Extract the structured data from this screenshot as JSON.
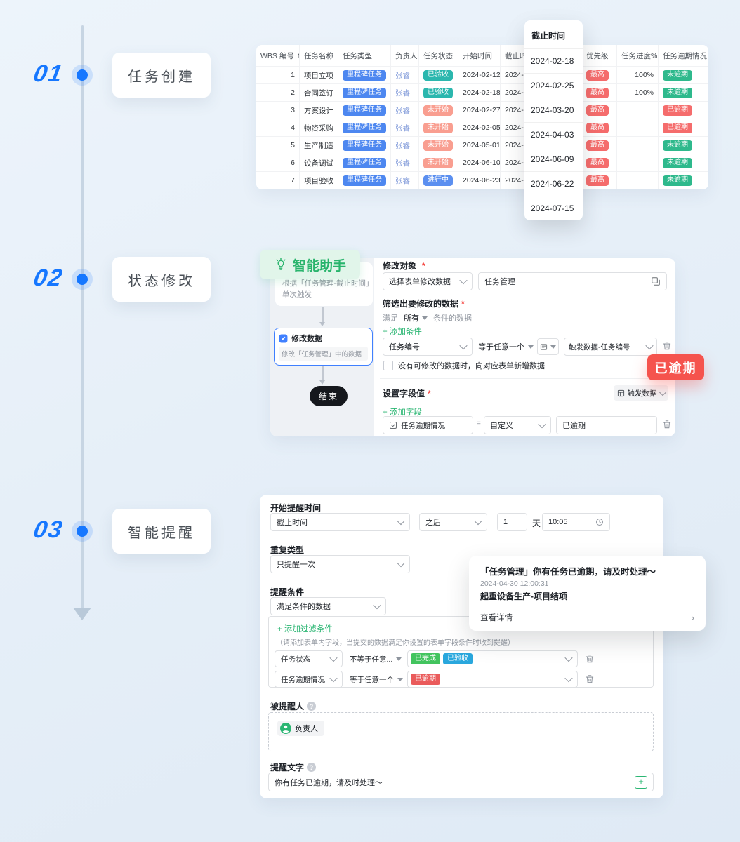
{
  "colors": {
    "accent_blue": "#1677ff",
    "accent_green": "#2bb673",
    "badge_red": "#f5534d"
  },
  "icons": {
    "sort_asc": "↑",
    "chevron_right": "›",
    "help": "?",
    "equals": "=",
    "plus": "+"
  },
  "steps": [
    {
      "number": "01",
      "label": "任务创建"
    },
    {
      "number": "02",
      "label": "状态修改"
    },
    {
      "number": "03",
      "label": "智能提醒"
    }
  ],
  "task_table": {
    "columns": [
      "WBS 编号",
      "任务名称",
      "任务类型",
      "负责人",
      "任务状态",
      "开始时间",
      "截止时间",
      "优先级",
      "任务进度%",
      "任务逾期情况"
    ],
    "pill_colors": {
      "milestone": "#4d87f0",
      "accepted": "#2bb7ae",
      "not_started": "#f99e90",
      "in_progress": "#5b8ff0",
      "highest": "#f56c6c",
      "overdue": "#f56c6c",
      "not_overdue": "#2eb98c"
    },
    "rows": [
      {
        "wbs": "1",
        "name": "项目立项",
        "type": "里程碑任务",
        "type_key": "milestone",
        "owner": "张睿",
        "status": "已验收",
        "status_key": "accepted",
        "start": "2024-02-12",
        "due": "2024-02-18",
        "priority": "最高",
        "priority_key": "highest",
        "progress": "100%",
        "overdue": "未逾期",
        "overdue_key": "not_overdue"
      },
      {
        "wbs": "2",
        "name": "合同签订",
        "type": "里程碑任务",
        "type_key": "milestone",
        "owner": "张睿",
        "status": "已验收",
        "status_key": "accepted",
        "start": "2024-02-18",
        "due": "2024-02-25",
        "priority": "最高",
        "priority_key": "highest",
        "progress": "100%",
        "overdue": "未逾期",
        "overdue_key": "not_overdue"
      },
      {
        "wbs": "3",
        "name": "方案设计",
        "type": "里程碑任务",
        "type_key": "milestone",
        "owner": "张睿",
        "status": "未开始",
        "status_key": "not_started",
        "start": "2024-02-27",
        "due": "2024-03-20",
        "priority": "最高",
        "priority_key": "highest",
        "progress": "",
        "overdue": "已逾期",
        "overdue_key": "overdue"
      },
      {
        "wbs": "4",
        "name": "物资采购",
        "type": "里程碑任务",
        "type_key": "milestone",
        "owner": "张睿",
        "status": "未开始",
        "status_key": "not_started",
        "start": "2024-02-05",
        "due": "2024-04-03",
        "priority": "最高",
        "priority_key": "highest",
        "progress": "",
        "overdue": "已逾期",
        "overdue_key": "overdue"
      },
      {
        "wbs": "5",
        "name": "生产制造",
        "type": "里程碑任务",
        "type_key": "milestone",
        "owner": "张睿",
        "status": "未开始",
        "status_key": "not_started",
        "start": "2024-05-01",
        "due": "2024-06-09",
        "priority": "最高",
        "priority_key": "highest",
        "progress": "",
        "overdue": "未逾期",
        "overdue_key": "not_overdue"
      },
      {
        "wbs": "6",
        "name": "设备调试",
        "type": "里程碑任务",
        "type_key": "milestone",
        "owner": "张睿",
        "status": "未开始",
        "status_key": "not_started",
        "start": "2024-06-10",
        "due": "2024-06-22",
        "priority": "最高",
        "priority_key": "highest",
        "progress": "",
        "overdue": "未逾期",
        "overdue_key": "not_overdue"
      },
      {
        "wbs": "7",
        "name": "项目验收",
        "type": "里程碑任务",
        "type_key": "milestone",
        "owner": "张睿",
        "status": "进行中",
        "status_key": "in_progress",
        "start": "2024-06-23",
        "due": "2024-07-15",
        "priority": "最高",
        "priority_key": "highest",
        "progress": "",
        "overdue": "未逾期",
        "overdue_key": "not_overdue"
      }
    ]
  },
  "due_overlay": {
    "title": "截止时间",
    "dates": [
      "2024-02-18",
      "2024-02-25",
      "2024-03-20",
      "2024-04-03",
      "2024-06-09",
      "2024-06-22",
      "2024-07-15"
    ]
  },
  "assistant": {
    "badge": "智能助手",
    "trigger_line1": "根据「任务管理-截止时间」",
    "trigger_line2": "单次触发",
    "node_title": "修改数据",
    "node_desc": "修改「任务管理」中的数据",
    "end_label": "结束"
  },
  "modify_form": {
    "target_label": "修改对象",
    "target_select": "选择表单修改数据",
    "target_value": "任务管理",
    "filter_label": "筛选出要修改的数据",
    "match_prefix": "满足",
    "match_mode": "所有",
    "match_suffix": "条件的数据",
    "add_condition": "+ 添加条件",
    "cond_field": "任务编号",
    "cond_op": "等于任意一个",
    "cond_value": "触发数据-任务编号",
    "checkbox_label": "没有可修改的数据时，向对应表单新增数据",
    "set_label": "设置字段值",
    "trigger_data_btn": "触发数据",
    "add_field": "+ 添加字段",
    "field_name": "任务逾期情况",
    "field_type": "自定义",
    "field_value": "已逾期",
    "overdue_badge": "已逾期"
  },
  "reminder_form": {
    "start_label": "开始提醒时间",
    "start_select": "截止时间",
    "after_select": "之后",
    "days_value": "1",
    "days_unit": "天",
    "time_value": "10:05",
    "repeat_label": "重复类型",
    "repeat_select": "只提醒一次",
    "condition_label": "提醒条件",
    "condition_select": "满足条件的数据",
    "add_filter": "+ 添加过滤条件",
    "filter_hint": "（请添加表单内字段，当提交的数据满足你设置的表单字段条件时收到提醒）",
    "filters": [
      {
        "field": "任务状态",
        "op": "不等于任意...",
        "tags": [
          {
            "label": "已完成",
            "color": "#42c45e"
          },
          {
            "label": "已验收",
            "color": "#29a7dd"
          }
        ]
      },
      {
        "field": "任务逾期情况",
        "op": "等于任意一个",
        "tags": [
          {
            "label": "已逾期",
            "color": "#ea5b5b"
          }
        ]
      }
    ],
    "notify_label": "被提醒人",
    "notify_tag": "负责人",
    "text_label": "提醒文字",
    "text_value": "你有任务已逾期，请及时处理～"
  },
  "notification": {
    "title": "「任务管理」你有任务已逾期，请及时处理～",
    "time": "2024-04-30 12:00:31",
    "subtitle": "起重设备生产-项目结项",
    "action": "查看详情"
  }
}
